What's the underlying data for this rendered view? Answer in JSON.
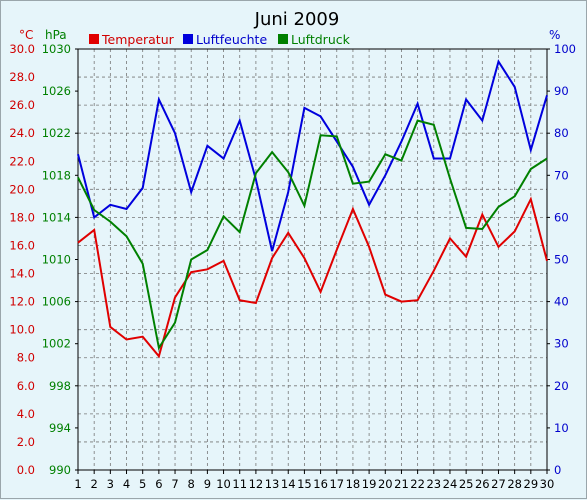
{
  "chart_data": {
    "type": "line",
    "title": "Juni 2009",
    "x": [
      1,
      2,
      3,
      4,
      5,
      6,
      7,
      8,
      9,
      10,
      11,
      12,
      13,
      14,
      15,
      16,
      17,
      18,
      19,
      20,
      21,
      22,
      23,
      24,
      25,
      26,
      27,
      28,
      29,
      30
    ],
    "x_ticks": [
      "1",
      "2",
      "3",
      "4",
      "5",
      "6",
      "7",
      "8",
      "9",
      "10",
      "11",
      "12",
      "13",
      "14",
      "15",
      "16",
      "17",
      "18",
      "19",
      "20",
      "21",
      "22",
      "23",
      "24",
      "25",
      "26",
      "27",
      "28",
      "29",
      "30"
    ],
    "axes": {
      "temperature": {
        "unit": "°C",
        "ylim": [
          0,
          30
        ],
        "ticks": [
          "0.0",
          "2.0",
          "4.0",
          "6.0",
          "8.0",
          "10.0",
          "12.0",
          "14.0",
          "16.0",
          "18.0",
          "20.0",
          "22.0",
          "24.0",
          "26.0",
          "28.0",
          "30.0"
        ],
        "color": "#d00000"
      },
      "pressure": {
        "unit": "hPa",
        "ylim": [
          990,
          1030
        ],
        "ticks": [
          "990",
          "994",
          "998",
          "1002",
          "1006",
          "1010",
          "1014",
          "1018",
          "1022",
          "1026",
          "1030"
        ],
        "color": "#008000"
      },
      "humidity": {
        "unit": "%",
        "ylim": [
          0,
          100
        ],
        "ticks": [
          "0",
          "10",
          "20",
          "30",
          "40",
          "50",
          "60",
          "70",
          "80",
          "90",
          "100"
        ],
        "color": "#0000cc"
      }
    },
    "grid": true,
    "legend_position": "top-left",
    "series": [
      {
        "name": "Temperatur",
        "axis": "temperature",
        "color": "#e00000",
        "values": [
          16.2,
          17.1,
          10.2,
          9.3,
          9.5,
          8.1,
          12.3,
          14.1,
          14.3,
          14.9,
          12.1,
          11.9,
          15.1,
          16.9,
          15.1,
          12.7,
          15.7,
          18.6,
          15.9,
          12.5,
          12.0,
          12.1,
          14.2,
          16.5,
          15.2,
          18.2,
          15.9,
          17.0,
          19.3,
          14.9
        ]
      },
      {
        "name": "Luftfeuchte",
        "axis": "humidity",
        "color": "#0000dd",
        "values": [
          75,
          60,
          63,
          62,
          67,
          88,
          80,
          66,
          77,
          74,
          83,
          69,
          52,
          66,
          86,
          84,
          78,
          72,
          63,
          70,
          78,
          87,
          74,
          74,
          88,
          83,
          97,
          91,
          76,
          89
        ]
      },
      {
        "name": "Luftdruck",
        "axis": "pressure",
        "color": "#008000",
        "values": [
          1017.8,
          1014.7,
          1013.6,
          1012.2,
          1009.6,
          1001.6,
          1004.0,
          1010.0,
          1010.9,
          1014.1,
          1012.6,
          1018.2,
          1020.2,
          1018.3,
          1015.1,
          1021.8,
          1021.7,
          1017.2,
          1017.4,
          1020.0,
          1019.4,
          1023.2,
          1022.8,
          1017.7,
          1013.0,
          1012.9,
          1015.0,
          1016.0,
          1018.6,
          1019.6
        ]
      }
    ]
  }
}
